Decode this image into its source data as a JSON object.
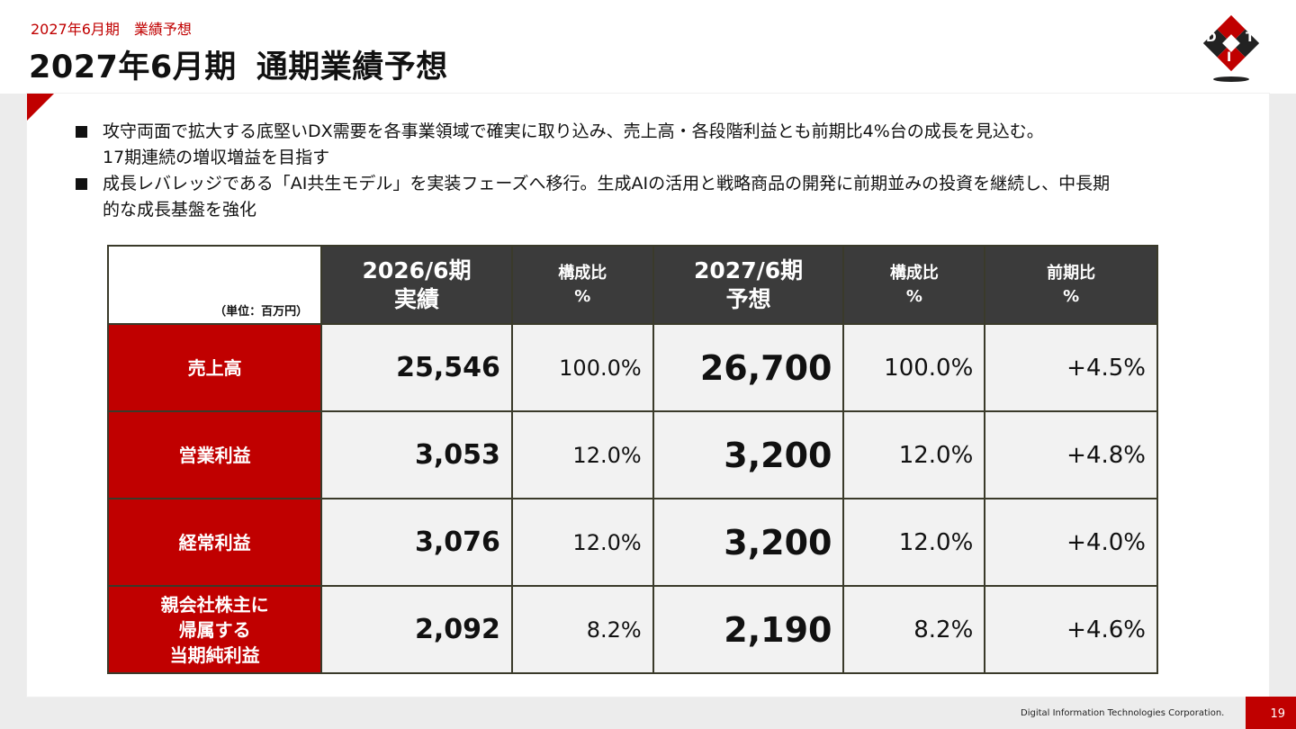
{
  "header": {
    "breadcrumb": "2027年6月期　業績予想",
    "title_part1": "2027年6月期",
    "title_part2": "通期業績予想"
  },
  "logo": {
    "letters": [
      "D",
      "I",
      "T"
    ],
    "colors": {
      "red": "#c00000",
      "black": "#222222"
    }
  },
  "bullets": [
    {
      "line1": "攻守両面で拡大する底堅いDX需要を各事業領域で確実に取り込み、売上高・各段階利益とも前期比4%台の成長を見込む。",
      "line2": "17期連続の増収増益を目指す"
    },
    {
      "line1": "成長レバレッジである「AI共生モデル」を実装フェーズへ移行。生成AIの活用と戦略商品の開発に前期並みの投資を継続し、中長期",
      "line2": "的な成長基盤を強化"
    }
  ],
  "table": {
    "unit": "（単位：百万円）",
    "headers": [
      {
        "line1": "2026/6期",
        "line2": "実績"
      },
      {
        "line1": "構成比",
        "line2": "%"
      },
      {
        "line1": "2027/6期",
        "line2": "予想"
      },
      {
        "line1": "構成比",
        "line2": "%"
      },
      {
        "line1": "前期比",
        "line2": "%"
      }
    ],
    "rows": [
      {
        "label": [
          "売上高"
        ],
        "actual": "25,546",
        "actual_ratio": "100.0%",
        "forecast": "26,700",
        "forecast_ratio": "100.0%",
        "yoy": "+4.5%"
      },
      {
        "label": [
          "営業利益"
        ],
        "actual": "3,053",
        "actual_ratio": "12.0%",
        "forecast": "3,200",
        "forecast_ratio": "12.0%",
        "yoy": "+4.8%"
      },
      {
        "label": [
          "経常利益"
        ],
        "actual": "3,076",
        "actual_ratio": "12.0%",
        "forecast": "3,200",
        "forecast_ratio": "12.0%",
        "yoy": "+4.0%"
      },
      {
        "label": [
          "親会社株主に",
          "帰属する",
          "当期純利益"
        ],
        "actual": "2,092",
        "actual_ratio": "8.2%",
        "forecast": "2,190",
        "forecast_ratio": "8.2%",
        "yoy": "+4.6%"
      }
    ]
  },
  "footer": {
    "company": "Digital Information Technologies Corporation.",
    "page": "19"
  },
  "colors": {
    "accent": "#c00000",
    "header_bg": "#3b3b3b",
    "cell_bg": "#f2f2f2"
  }
}
